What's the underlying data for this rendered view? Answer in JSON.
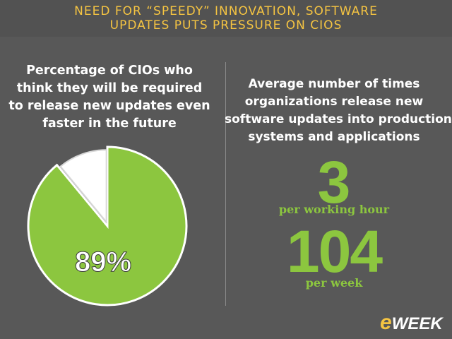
{
  "header": {
    "line1": "NEED FOR “SPEEDY” INNOVATION, SOFTWARE",
    "line2": "UPDATES PUTS PRESSURE ON CIOS"
  },
  "left": {
    "title_lines": [
      "Percentage of CIOs who",
      "think they will be required",
      "to release new updates even",
      "faster in the future"
    ]
  },
  "right": {
    "title_lines": [
      "Average number of times",
      "organizations release new",
      "software updates into production",
      "systems and applications"
    ],
    "stats": [
      {
        "value": "3",
        "unit": "per working hour"
      },
      {
        "value": "104",
        "unit": "per week"
      }
    ]
  },
  "chart_data": {
    "type": "pie",
    "slices": [
      {
        "label": "89%",
        "value": 89,
        "color": "#8cc63f"
      },
      {
        "label": "",
        "value": 11,
        "color": "#ffffff"
      }
    ]
  },
  "logo": {
    "brand_e": "e",
    "brand_rest": "WEEK"
  },
  "colors": {
    "background": "#585858",
    "header_text": "#f5c442",
    "accent_green": "#8cc63f",
    "divider": "#8a8a8a"
  }
}
